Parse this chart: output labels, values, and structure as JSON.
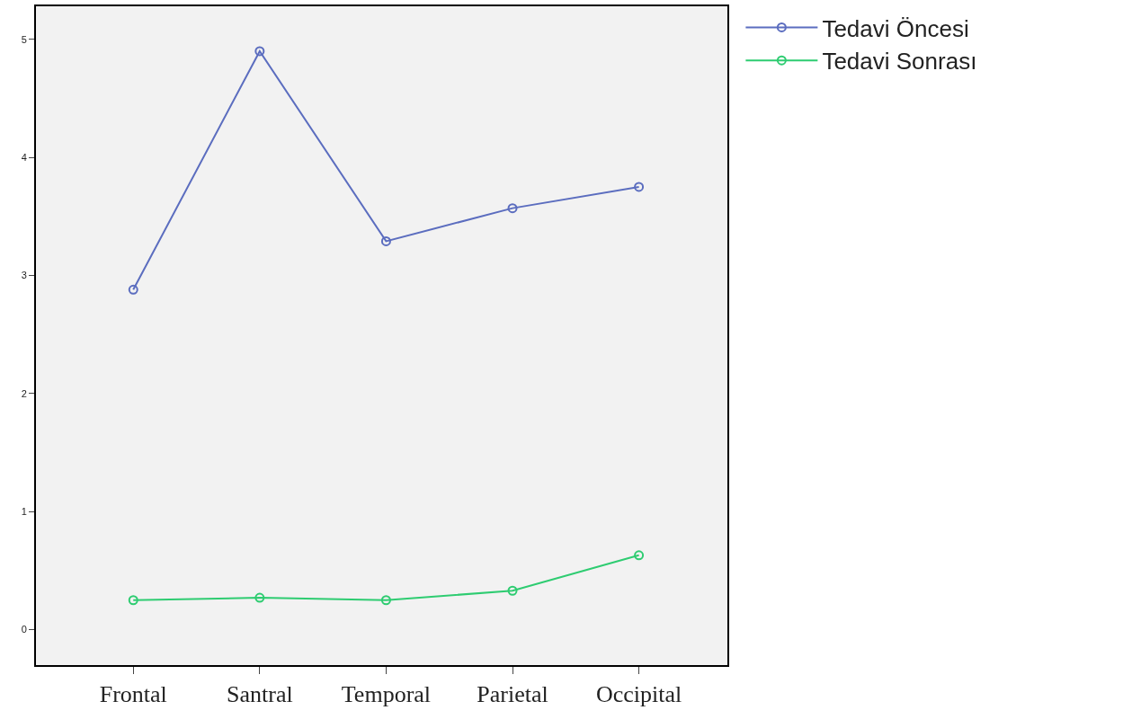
{
  "chart_data": {
    "type": "line",
    "categories": [
      "Frontal",
      "Santral",
      "Temporal",
      "Parietal",
      "Occipital"
    ],
    "series": [
      {
        "name": "Tedavi Öncesi",
        "color": "#5b6dbf",
        "values": [
          2.88,
          4.9,
          3.29,
          3.57,
          3.75
        ]
      },
      {
        "name": "Tedavi Sonrası",
        "color": "#2ecc71",
        "values": [
          0.25,
          0.27,
          0.25,
          0.33,
          0.63
        ]
      }
    ],
    "ylim": [
      -0.3,
      5.28
    ],
    "yticks": [
      0,
      1,
      2,
      3,
      4,
      5
    ],
    "grid": false,
    "legend": "top right",
    "marker": "circle",
    "line_style": "solid"
  }
}
